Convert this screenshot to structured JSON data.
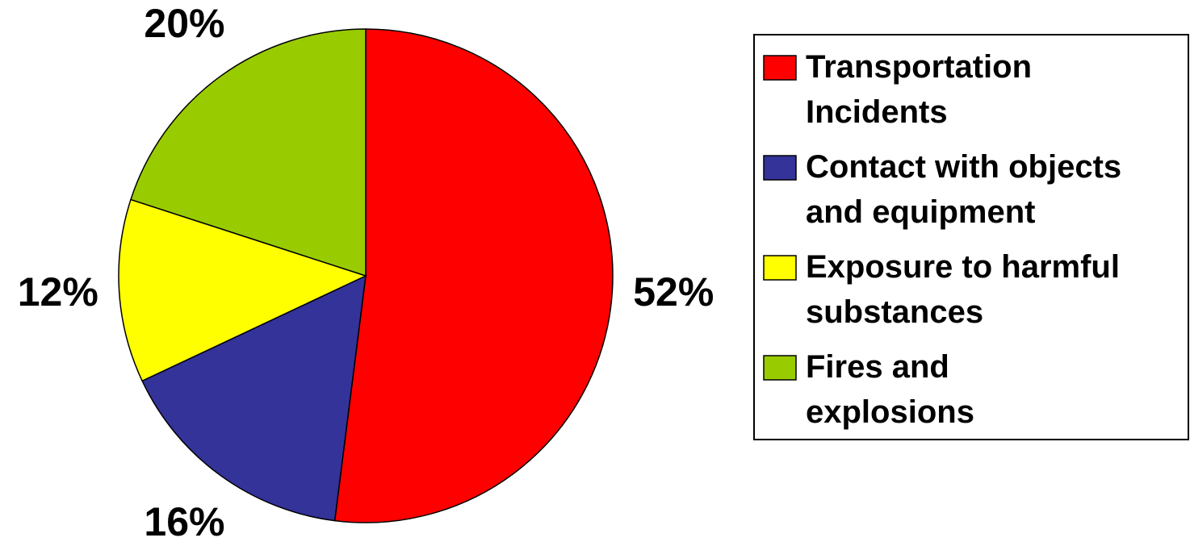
{
  "chart_data": {
    "type": "pie",
    "categories": [
      "Transportation Incidents",
      "Contact with objects and equipment",
      "Exposure to harmful substances",
      "Fires and explosions"
    ],
    "values": [
      52,
      16,
      12,
      20
    ],
    "value_labels": [
      "52%",
      "16%",
      "12%",
      "20%"
    ],
    "colors": [
      "#ff0000",
      "#333399",
      "#ffff00",
      "#99cc00"
    ],
    "legend": "right"
  }
}
